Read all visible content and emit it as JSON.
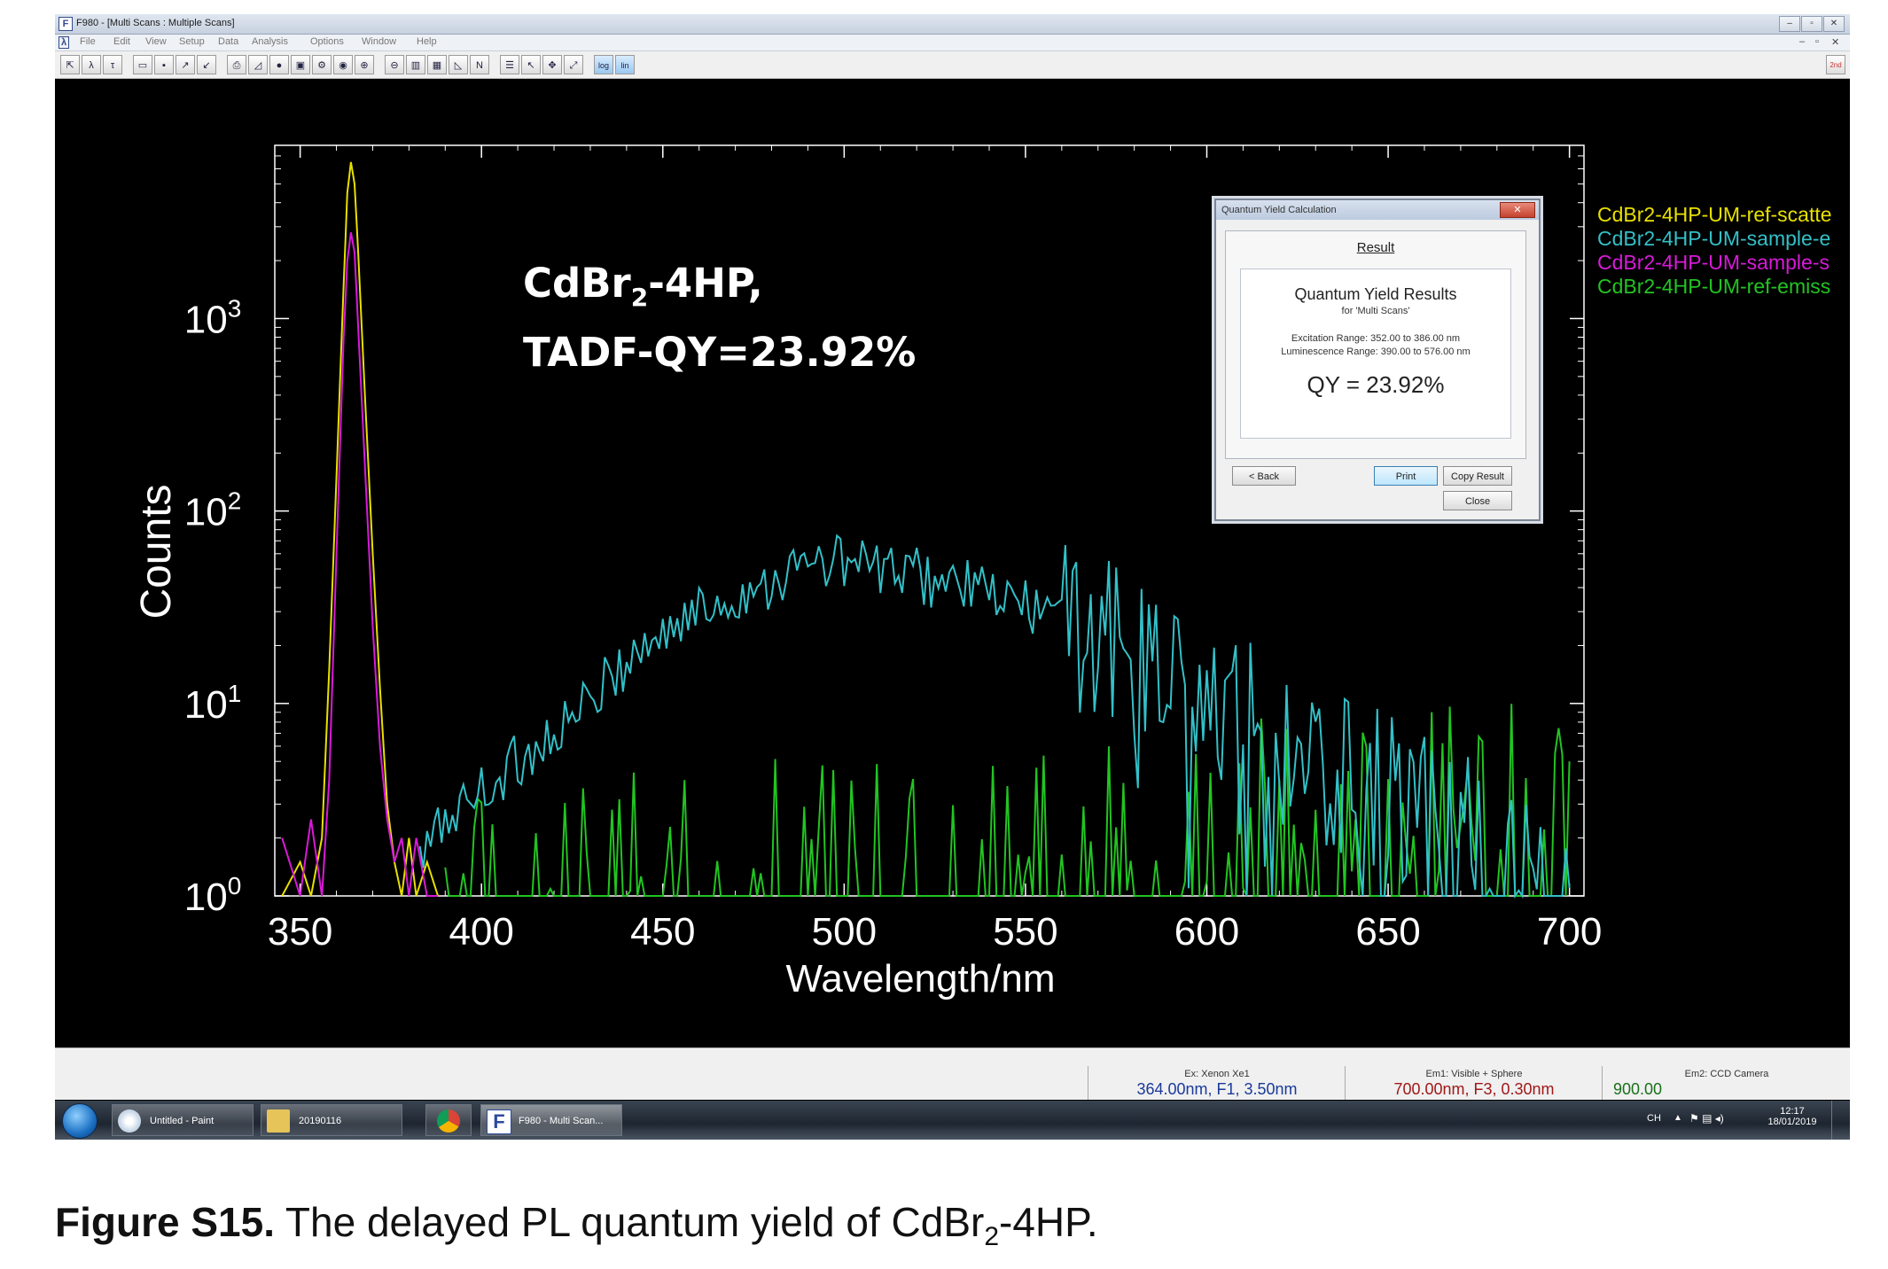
{
  "window": {
    "title": "F980 - [Multi Scans : Multiple Scans]",
    "app_icon": "F",
    "controls": [
      "–",
      "▫",
      "✕"
    ],
    "mdi_controls": [
      "–",
      "▫",
      "✕"
    ]
  },
  "menu": [
    "File",
    "Edit",
    "View",
    "Setup",
    "Data",
    "Analysis",
    "Options",
    "Window",
    "Help"
  ],
  "toolbar": {
    "icons": [
      "zoom-fit-icon",
      "lambda-icon",
      "tau-icon",
      "open-icon",
      "save-icon",
      "export-icon",
      "import-icon",
      "print-icon",
      "chart-icon",
      "fluor-icon",
      "sample-icon",
      "settings-icon",
      "record-icon",
      "zoom-in-icon",
      "zoom-out-icon",
      "bar-chart-icon",
      "table-icon",
      "plot-icon",
      "normalize-icon",
      "properties-icon",
      "cursor-icon",
      "move-icon",
      "fit-icon",
      "log-icon",
      "lin-icon"
    ],
    "labels": {
      "log": "log",
      "lin": "lin",
      "normalize": "N"
    },
    "right_badge": "2nd"
  },
  "annotation": {
    "line1_main": "CdBr",
    "line1_sub": "2",
    "line1_rest": "-4HP,",
    "line2": "TADF-QY=23.92%"
  },
  "chart_data": {
    "type": "line",
    "xlabel": "Wavelength/nm",
    "ylabel": "Counts",
    "xlim": [
      343,
      704
    ],
    "ylim_log10": [
      0,
      3.9
    ],
    "y_scale": "log",
    "x_ticks": [
      350,
      400,
      450,
      500,
      550,
      600,
      650,
      700
    ],
    "y_ticks": [
      {
        "base": "10",
        "exp": "0"
      },
      {
        "base": "10",
        "exp": "1"
      },
      {
        "base": "10",
        "exp": "2"
      },
      {
        "base": "10",
        "exp": "3"
      }
    ],
    "legend_position": "top-right",
    "series": [
      {
        "name": "CdBr2-4HP-UM-ref-scatte",
        "color": "#e8e000",
        "x": [
          345,
          350,
          353,
          356,
          358,
          360,
          362,
          363,
          364,
          365,
          366,
          368,
          370,
          372,
          374,
          376,
          378,
          380,
          382,
          385,
          388
        ],
        "y": [
          1,
          1.5,
          1,
          2,
          15,
          150,
          1500,
          4500,
          6500,
          5000,
          2200,
          350,
          60,
          12,
          3,
          1.5,
          1,
          2,
          1,
          1.5,
          1
        ]
      },
      {
        "name": "CdBr2-4HP-UM-sample-e",
        "color": "#33c0c8",
        "x": [
          383,
          390,
          400,
          410,
          420,
          430,
          440,
          450,
          460,
          470,
          480,
          490,
          500,
          510,
          520,
          530,
          540,
          550,
          560,
          570,
          580,
          590,
          600,
          610,
          620,
          630,
          640,
          650,
          660,
          670,
          680,
          690,
          700
        ],
        "y": [
          1.5,
          2.5,
          3.5,
          5,
          7,
          10,
          17,
          23,
          30,
          36,
          44,
          52,
          55,
          50,
          46,
          42,
          37,
          32,
          28,
          22,
          17,
          13,
          10,
          8,
          6,
          5,
          4,
          3.5,
          2.5,
          2,
          1.6,
          1.3,
          1.1
        ]
      },
      {
        "name": "CdBr2-4HP-UM-sample-s",
        "color": "#d81ad8",
        "x": [
          345,
          350,
          353,
          356,
          358,
          360,
          362,
          363,
          364,
          365,
          366,
          368,
          370,
          372,
          374,
          376,
          378,
          380,
          382,
          385,
          388
        ],
        "y": [
          2,
          1,
          2.5,
          1,
          4,
          60,
          800,
          2000,
          2800,
          2200,
          900,
          150,
          25,
          6,
          2.5,
          1.5,
          2,
          1,
          2,
          1,
          1
        ]
      },
      {
        "name": "CdBr2-4HP-UM-ref-emiss",
        "color": "#22c422",
        "x": [
          390,
          400,
          410,
          420,
          430,
          440,
          450,
          460,
          470,
          480,
          490,
          500,
          510,
          520,
          530,
          540,
          550,
          560,
          570,
          580,
          590,
          600,
          610,
          620,
          630,
          640,
          650,
          660,
          670,
          680,
          690,
          700
        ],
        "y": [
          1,
          1,
          1.1,
          1.2,
          1.3,
          1.3,
          1.2,
          1.2,
          1.3,
          1.6,
          1.8,
          1.9,
          2,
          1.9,
          1.7,
          1.6,
          1.6,
          1.6,
          1.7,
          1.8,
          2,
          2.2,
          2.5,
          2.8,
          3.2,
          3.5,
          4,
          4.5,
          4.8,
          5,
          5,
          5
        ]
      }
    ]
  },
  "dialog": {
    "title": "Quantum Yield Calculation",
    "close_label": "✕",
    "tab": "Result",
    "heading": "Quantum Yield Results",
    "for_line": "for 'Multi Scans'",
    "excitation": "Excitation Range: 352.00 to 386.00 nm",
    "luminescence": "Luminescence Range: 390.00 to 576.00 nm",
    "qy": "QY = 23.92%",
    "buttons": {
      "back": "< Back",
      "print": "Print",
      "copy": "Copy Result",
      "close": "Close"
    }
  },
  "status": {
    "ex_label": "Ex: Xenon Xe1",
    "ex_value": "364.00nm, F1, 3.50nm",
    "em1_label": "Em1: Visible + Sphere",
    "em1_value": "700.00nm, F3, 0.30nm",
    "em2_label": "Em2: CCD Camera",
    "em2_value": "900.00"
  },
  "taskbar": {
    "start": "start-orb",
    "items": [
      {
        "label": "Untitled - Paint"
      },
      {
        "label": "20190116"
      },
      {
        "label": ""
      },
      {
        "label": "F980 - Multi Scan..."
      }
    ],
    "lang": "CH",
    "time": "12:17",
    "date": "18/01/2019"
  },
  "caption": {
    "bold": "Figure S15.",
    "text_before": " The delayed PL quantum yield of CdBr",
    "sub": "2",
    "text_after": "-4HP."
  }
}
